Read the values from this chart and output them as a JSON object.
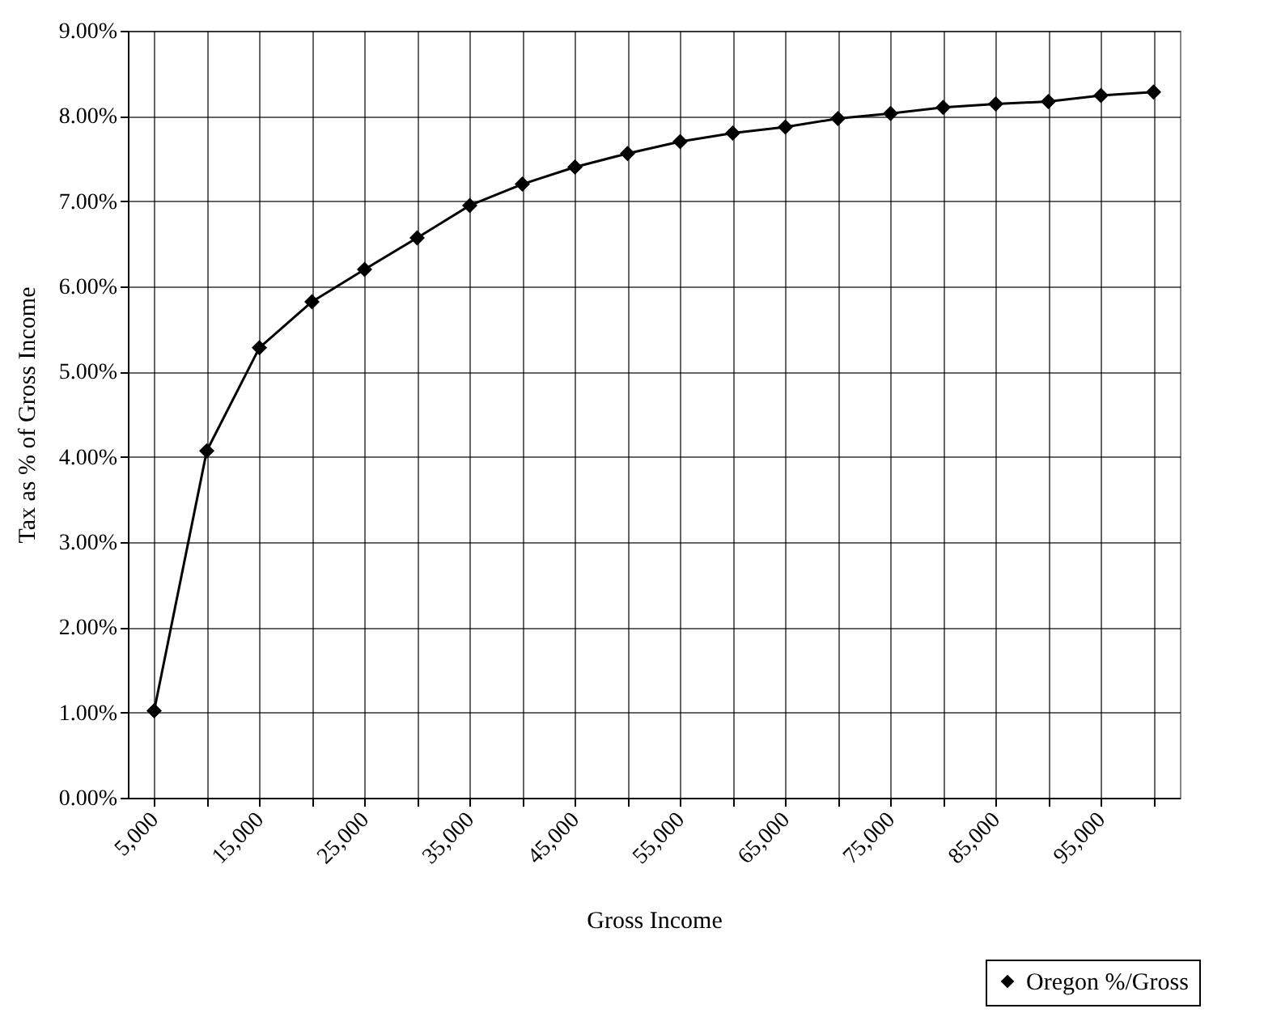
{
  "chart_data": {
    "type": "line",
    "xlabel": "Gross Income",
    "ylabel": "Tax as % of Gross Income",
    "categories": [
      "5,000",
      null,
      "15,000",
      null,
      "25,000",
      null,
      "35,000",
      null,
      "45,000",
      null,
      "55,000",
      null,
      "65,000",
      null,
      "75,000",
      null,
      "85,000",
      null,
      "95,000",
      null
    ],
    "series": [
      {
        "name": "Oregon %/Gross",
        "color": "#000000",
        "values": [
          1.02,
          4.07,
          5.28,
          5.82,
          6.2,
          6.57,
          6.95,
          7.2,
          7.4,
          7.56,
          7.7,
          7.8,
          7.87,
          7.97,
          8.03,
          8.1,
          8.14,
          8.17,
          8.24,
          8.28
        ]
      }
    ],
    "ylim": [
      0,
      9
    ],
    "yticks": [
      {
        "value": 0,
        "label": "0.00%"
      },
      {
        "value": 1,
        "label": "1.00%"
      },
      {
        "value": 2,
        "label": "2.00%"
      },
      {
        "value": 3,
        "label": "3.00%"
      },
      {
        "value": 4,
        "label": "4.00%"
      },
      {
        "value": 5,
        "label": "5.00%"
      },
      {
        "value": 6,
        "label": "6.00%"
      },
      {
        "value": 7,
        "label": "7.00%"
      },
      {
        "value": 8,
        "label": "8.00%"
      },
      {
        "value": 9,
        "label": "9.00%"
      }
    ],
    "grid": true,
    "legend": "bottom right",
    "marker": "diamond",
    "line_style": "solid"
  }
}
